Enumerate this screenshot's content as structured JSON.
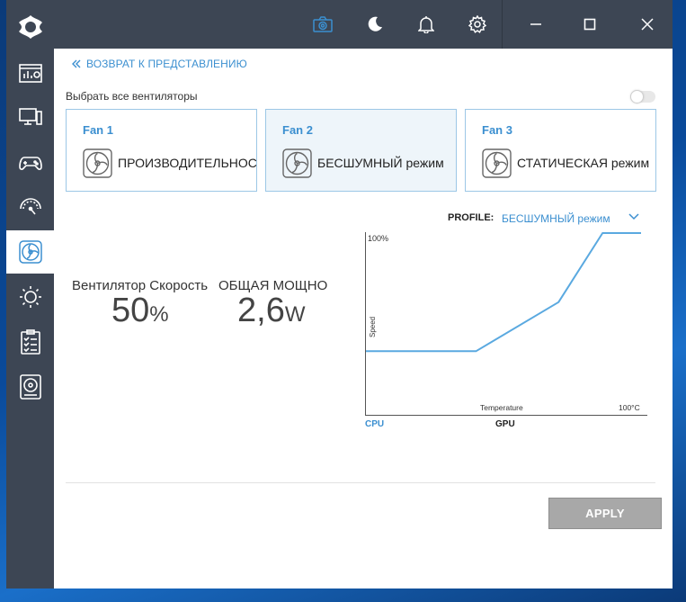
{
  "colors": {
    "accent": "#3b8fd0",
    "sidebar": "#3d4654",
    "curve": "#5aa9e0"
  },
  "titlebar": {
    "icons": [
      "camera-icon",
      "moon-icon",
      "bell-icon",
      "gear-icon",
      "minimize-icon",
      "maximize-icon",
      "close-icon"
    ]
  },
  "sidebar": {
    "items": [
      {
        "name": "dashboard-icon"
      },
      {
        "name": "monitor-icon"
      },
      {
        "name": "gamepad-icon"
      },
      {
        "name": "speedometer-icon"
      },
      {
        "name": "fan-icon",
        "active": true
      },
      {
        "name": "brightness-icon"
      },
      {
        "name": "checklist-icon"
      },
      {
        "name": "disk-icon"
      }
    ]
  },
  "back_link": "ВОЗВРАТ К ПРЕДСТАВЛЕНИЮ",
  "select_all": {
    "label": "Выбрать все вентиляторы",
    "on": false
  },
  "fans": [
    {
      "title": "Fan 1",
      "mode": "ПРОИЗВОДИТЕЛЬНОСТЬ",
      "selected": false
    },
    {
      "title": "Fan 2",
      "mode": "БЕСШУМНЫЙ режим",
      "selected": true
    },
    {
      "title": "Fan 3",
      "mode": "СТАТИЧЕСКАЯ режим",
      "selected": false
    }
  ],
  "metrics": {
    "fan_speed": {
      "label": "Вентилятор Скорость",
      "value": "50",
      "unit": "%"
    },
    "total_power": {
      "label": "ОБЩАЯ МОЩНОСТЬ",
      "value": "2,6",
      "unit": "W"
    }
  },
  "profile": {
    "label": "PROFILE:",
    "value": "БЕСШУМНЫЙ режим"
  },
  "chart_data": {
    "type": "line",
    "ylabel": "Speed",
    "xlabel": "Temperature",
    "y_max_label": "100%",
    "x_max_label": "100°C",
    "source_tabs": [
      "CPU",
      "GPU"
    ],
    "active_source": "CPU",
    "xlim": [
      0,
      100
    ],
    "ylim": [
      0,
      100
    ],
    "series": [
      {
        "x": [
          0,
          40,
          70,
          86,
          100
        ],
        "y": [
          35,
          35,
          62,
          100,
          100
        ]
      }
    ]
  },
  "apply_label": "APPLY"
}
